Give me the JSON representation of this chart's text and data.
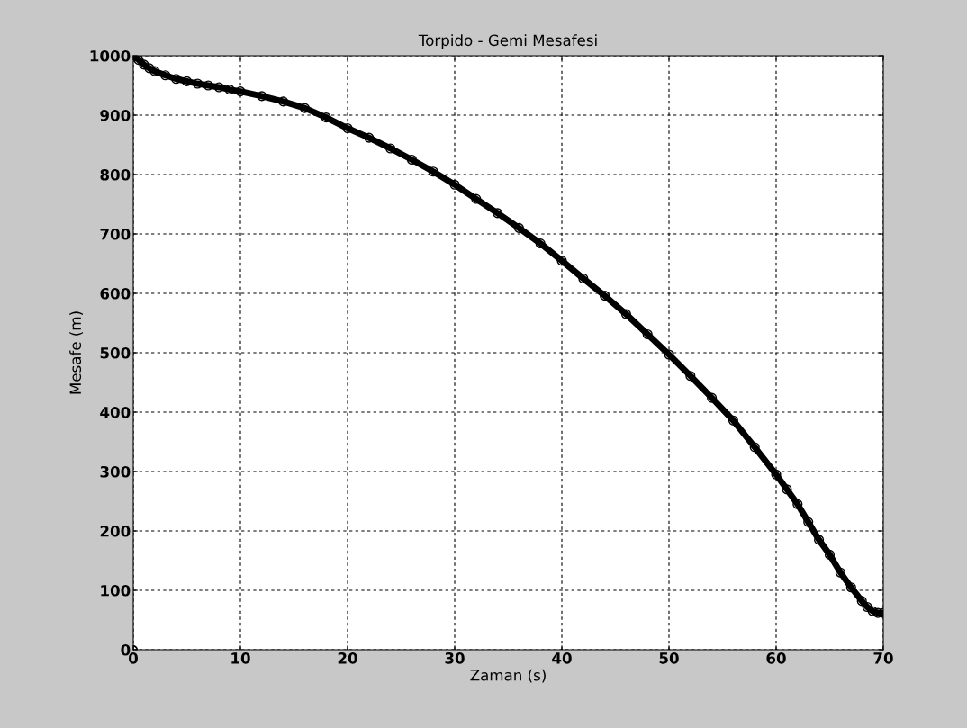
{
  "chart_data": {
    "type": "line",
    "title": "Torpido - Gemi Mesafesi",
    "xlabel": "Zaman (s)",
    "ylabel": "Mesafe (m)",
    "series": [
      {
        "type": "scatter",
        "color": "#000000",
        "x": [
          0
        ],
        "values": [
          0
        ]
      },
      {
        "color": "#000000",
        "x": [
          0,
          0.5,
          1,
          1.5,
          2,
          3,
          4,
          5,
          6,
          7,
          8,
          9,
          10,
          12,
          14,
          16,
          18,
          20,
          22,
          24,
          26,
          28,
          30,
          32,
          34,
          36,
          38,
          40,
          42,
          44,
          46,
          48,
          50,
          52,
          54,
          56,
          58,
          60,
          61,
          62,
          63,
          64,
          65,
          66,
          67,
          68,
          68.5,
          69,
          69.5,
          70
        ],
        "values": [
          1000,
          993,
          985,
          979,
          974,
          967,
          961,
          957,
          953,
          950,
          947,
          943,
          940,
          932,
          923,
          912,
          896,
          878,
          862,
          844,
          825,
          805,
          783,
          759,
          735,
          710,
          684,
          655,
          625,
          596,
          565,
          531,
          497,
          461,
          424,
          386,
          341,
          295,
          270,
          245,
          215,
          185,
          160,
          130,
          105,
          82,
          72,
          65,
          62,
          62
        ]
      }
    ],
    "xlim": [
      0,
      70
    ],
    "xticks": [
      0,
      10,
      20,
      30,
      40,
      50,
      60,
      70
    ],
    "ylim": [
      0,
      1000
    ],
    "yticks": [
      0,
      100,
      200,
      300,
      400,
      500,
      600,
      700,
      800,
      900,
      1000
    ],
    "grid": true,
    "marker": "circle"
  }
}
